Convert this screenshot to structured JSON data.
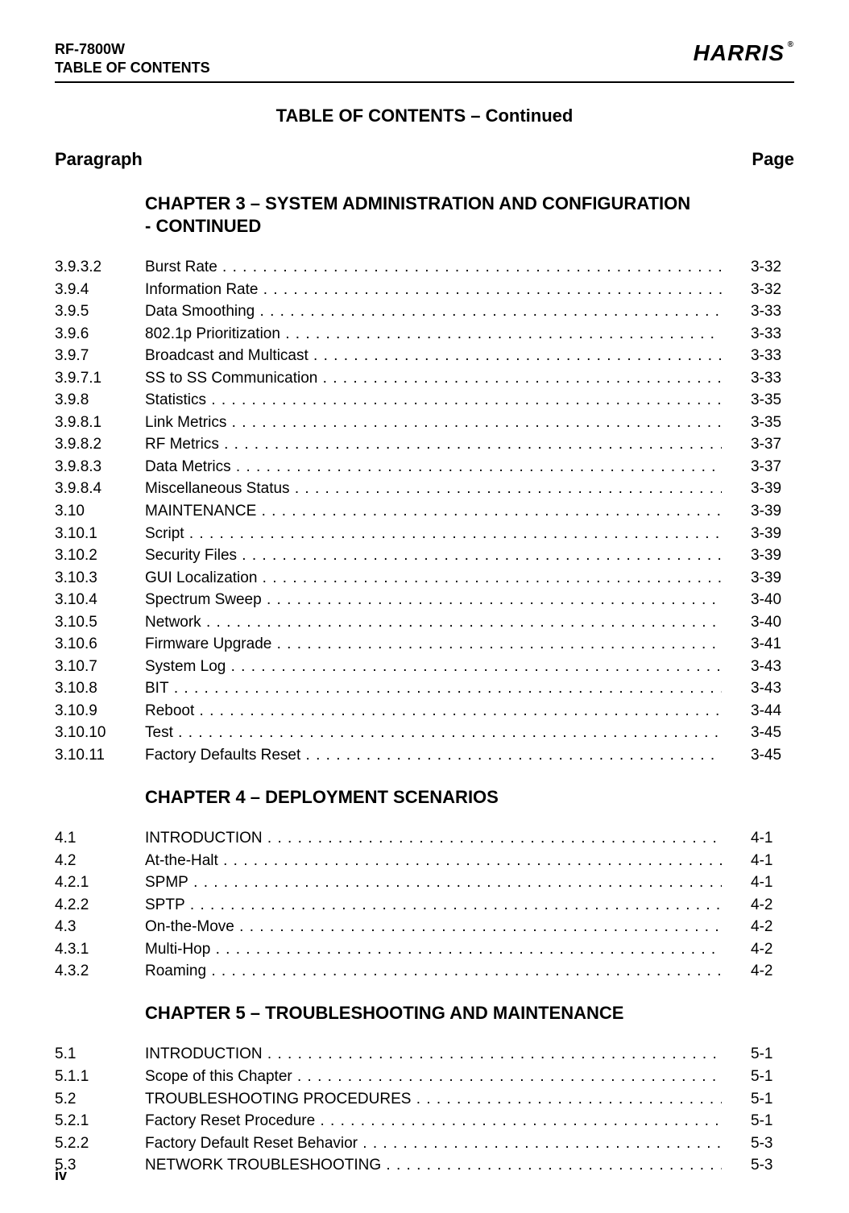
{
  "header": {
    "product": "RF-7800W",
    "section": "TABLE OF CONTENTS",
    "brand": "HARRIS",
    "reg": "®"
  },
  "title": "TABLE OF CONTENTS – Continued",
  "colhead": {
    "left": "Paragraph",
    "right": "Page"
  },
  "chapters": [
    {
      "title": "CHAPTER 3 – SYSTEM ADMINISTRATION AND CONFIGURATION - CONTINUED",
      "entries": [
        {
          "para": "3.9.3.2",
          "title": "Burst Rate",
          "page": "3-32"
        },
        {
          "para": "3.9.4",
          "title": "Information Rate",
          "page": "3-32"
        },
        {
          "para": "3.9.5",
          "title": "Data Smoothing",
          "page": "3-33"
        },
        {
          "para": "3.9.6",
          "title": "802.1p Prioritization",
          "page": "3-33"
        },
        {
          "para": "3.9.7",
          "title": "Broadcast and Multicast",
          "page": "3-33"
        },
        {
          "para": "3.9.7.1",
          "title": "SS to SS Communication",
          "page": "3-33"
        },
        {
          "para": "3.9.8",
          "title": "Statistics",
          "page": "3-35"
        },
        {
          "para": "3.9.8.1",
          "title": "Link Metrics",
          "page": "3-35"
        },
        {
          "para": "3.9.8.2",
          "title": "RF Metrics",
          "page": "3-37"
        },
        {
          "para": "3.9.8.3",
          "title": "Data Metrics",
          "page": "3-37"
        },
        {
          "para": "3.9.8.4",
          "title": "Miscellaneous Status",
          "page": "3-39"
        },
        {
          "para": "3.10",
          "title": "MAINTENANCE",
          "page": "3-39"
        },
        {
          "para": "3.10.1",
          "title": "Script",
          "page": "3-39"
        },
        {
          "para": "3.10.2",
          "title": "Security Files",
          "page": "3-39"
        },
        {
          "para": "3.10.3",
          "title": "GUI Localization",
          "page": "3-39"
        },
        {
          "para": "3.10.4",
          "title": "Spectrum Sweep",
          "page": "3-40"
        },
        {
          "para": "3.10.5",
          "title": "Network",
          "page": "3-40"
        },
        {
          "para": "3.10.6",
          "title": "Firmware Upgrade",
          "page": "3-41"
        },
        {
          "para": "3.10.7",
          "title": "System Log",
          "page": "3-43"
        },
        {
          "para": "3.10.8",
          "title": "BIT",
          "page": "3-43"
        },
        {
          "para": "3.10.9",
          "title": "Reboot",
          "page": "3-44"
        },
        {
          "para": "3.10.10",
          "title": "Test",
          "page": "3-45"
        },
        {
          "para": "3.10.11",
          "title": "Factory Defaults Reset",
          "page": "3-45"
        }
      ]
    },
    {
      "title": "CHAPTER 4 – DEPLOYMENT SCENARIOS",
      "entries": [
        {
          "para": "4.1",
          "title": "INTRODUCTION",
          "page": "4-1"
        },
        {
          "para": "4.2",
          "title": "At-the-Halt",
          "page": "4-1"
        },
        {
          "para": "4.2.1",
          "title": "SPMP",
          "page": "4-1"
        },
        {
          "para": "4.2.2",
          "title": "SPTP",
          "page": "4-2"
        },
        {
          "para": "4.3",
          "title": "On-the-Move",
          "page": "4-2"
        },
        {
          "para": "4.3.1",
          "title": "Multi-Hop",
          "page": "4-2"
        },
        {
          "para": "4.3.2",
          "title": "Roaming",
          "page": "4-2"
        }
      ]
    },
    {
      "title": "CHAPTER 5 – TROUBLESHOOTING AND MAINTENANCE",
      "entries": [
        {
          "para": "5.1",
          "title": "INTRODUCTION",
          "page": "5-1"
        },
        {
          "para": "5.1.1",
          "title": "Scope of this Chapter",
          "page": "5-1"
        },
        {
          "para": "5.2",
          "title": "TROUBLESHOOTING PROCEDURES",
          "page": "5-1"
        },
        {
          "para": "5.2.1",
          "title": "Factory Reset Procedure",
          "page": "5-1"
        },
        {
          "para": "5.2.2",
          "title": "Factory Default Reset Behavior",
          "page": "5-3"
        },
        {
          "para": "5.3",
          "title": "NETWORK TROUBLESHOOTING",
          "page": "5-3"
        }
      ]
    }
  ],
  "footer": "iv"
}
